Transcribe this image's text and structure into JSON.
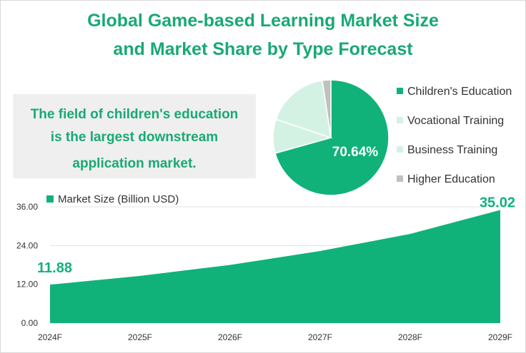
{
  "title_line1": "Global Game-based Learning Market Size",
  "title_line2": "and Market Share by Type Forecast",
  "note_line1": "The field of children's education",
  "note_line2": "is the largest downstream",
  "note_line3": "application market.",
  "colors": {
    "accent": "#10b27a",
    "light_green": "#d4f2e4",
    "gray": "#c0c0c0"
  },
  "chart_data": [
    {
      "type": "pie",
      "slices": [
        {
          "label": "Children's Education",
          "value": 70.64,
          "color": "#10b27a"
        },
        {
          "label": "Vocational Training",
          "value": 9.5,
          "color": "#d4f2e4"
        },
        {
          "label": "Business Training",
          "value": 17.5,
          "color": "#d4f2e4"
        },
        {
          "label": "Higher Education",
          "value": 2.36,
          "color": "#c0c0c0"
        }
      ],
      "data_label": "70.64%",
      "legend_position": "right"
    },
    {
      "type": "area",
      "series": [
        {
          "name": "Market Size (Billion USD)",
          "values": [
            11.88,
            14.6,
            18.0,
            22.3,
            27.6,
            35.02
          ]
        }
      ],
      "x": [
        "2024F",
        "2025F",
        "2026F",
        "2027F",
        "2028F",
        "2029F"
      ],
      "y_ticks": [
        "0.00",
        "12.00",
        "24.00",
        "36.00"
      ],
      "ylim": [
        0,
        36
      ],
      "data_labels": {
        "first": "11.88",
        "last": "35.02"
      },
      "grid": true,
      "legend_position": "top-left"
    }
  ]
}
